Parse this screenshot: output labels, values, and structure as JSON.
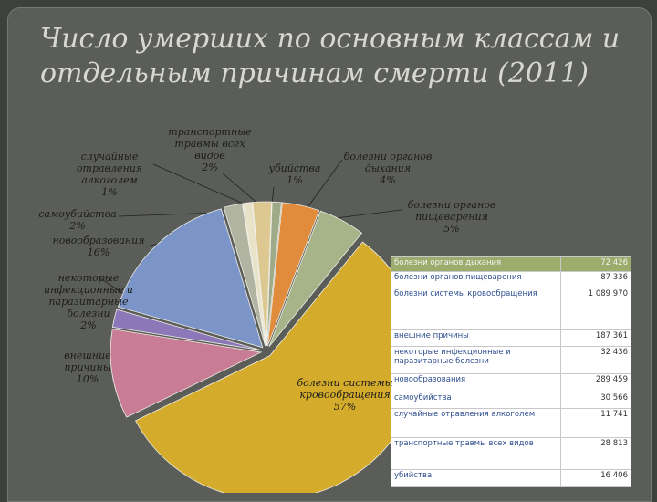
{
  "chart_data": {
    "type": "pie",
    "title": "Число умерших по основным классам и отдельным причинам смерти (2011)",
    "categories": [
      "убийства",
      "болезни органов дыхания",
      "болезни органов пищеварения",
      "болезни системы кровообращения",
      "внешние причины",
      "некоторые инфекционные и паразитарные болезни",
      "новообразования",
      "самоубийства",
      "случайные отравления алкоголем",
      "транспортные травмы всех видов"
    ],
    "values": [
      1,
      4,
      5,
      57,
      10,
      2,
      16,
      2,
      1,
      2
    ],
    "value_labels": [
      "1%",
      "4%",
      "5%",
      "57%",
      "10%",
      "2%",
      "16%",
      "2%",
      "1%",
      "2%"
    ],
    "colors": [
      "#9fab88",
      "#e08c3c",
      "#a7b48a",
      "#d4ab2a",
      "#c97c95",
      "#8c78b8",
      "#7b95c9",
      "#b0b4a0",
      "#e8e2c8",
      "#dcc890"
    ]
  },
  "table": {
    "rows": [
      [
        "болезни органов дыхания",
        "72 426"
      ],
      [
        "болезни органов пищеварения",
        "87 336"
      ],
      [
        "болезни системы кровообращения",
        "1 089 970"
      ],
      [
        "внешние причины",
        "187 361"
      ],
      [
        "некоторые инфекционные и паразитарные болезни",
        "32 436"
      ],
      [
        "новообразования",
        "289 459"
      ],
      [
        "самоубийства",
        "30 566"
      ],
      [
        "случайные отравления алкоголем",
        "11 741"
      ],
      [
        "транспортные травмы всех видов",
        "28 813"
      ],
      [
        "убийства",
        "16 406"
      ]
    ]
  }
}
